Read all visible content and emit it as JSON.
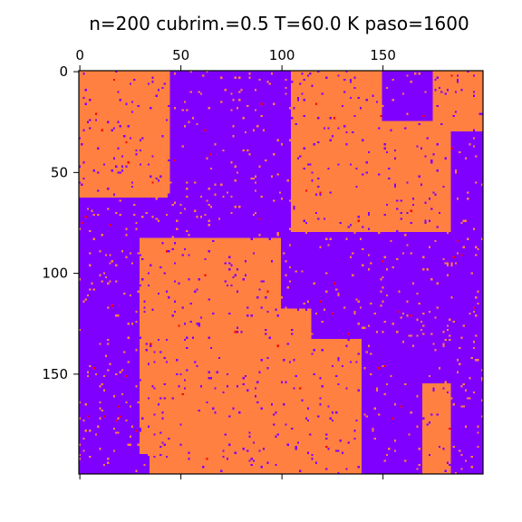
{
  "chart_data": {
    "type": "heatmap",
    "title": "n=200 cubrim.=0.5 T=60.0 K paso=1600",
    "grid_size": 200,
    "coverage": 0.5,
    "xlim": [
      0,
      200
    ],
    "ylim": [
      200,
      0
    ],
    "x_ticks": [
      0,
      50,
      100,
      150
    ],
    "y_ticks": [
      0,
      50,
      100,
      150
    ],
    "x_tick_labels": [
      "0",
      "50",
      "100",
      "150"
    ],
    "y_tick_labels": [
      "0",
      "50",
      "100",
      "150"
    ],
    "xaxis_position": "top",
    "grid": false,
    "legend": "none",
    "colors": {
      "empty": "#7f00ff",
      "occupied": "#ff8040",
      "defect": "#ff0000"
    },
    "occupied_regions": [
      {
        "description": "top-left island",
        "x_range": [
          0,
          45
        ],
        "y_range": [
          0,
          63
        ]
      },
      {
        "description": "top-right island",
        "x_range": [
          105,
          184
        ],
        "y_range": [
          0,
          80
        ]
      },
      {
        "description": "top-right corner island",
        "x_range": [
          170,
          200
        ],
        "y_range": [
          0,
          30
        ]
      },
      {
        "description": "central-bottom island",
        "x_range": [
          25,
          160
        ],
        "y_range": [
          68,
          200
        ]
      },
      {
        "description": "bottom-right island",
        "x_range": [
          163,
          195
        ],
        "y_range": [
          155,
          200
        ]
      }
    ]
  }
}
